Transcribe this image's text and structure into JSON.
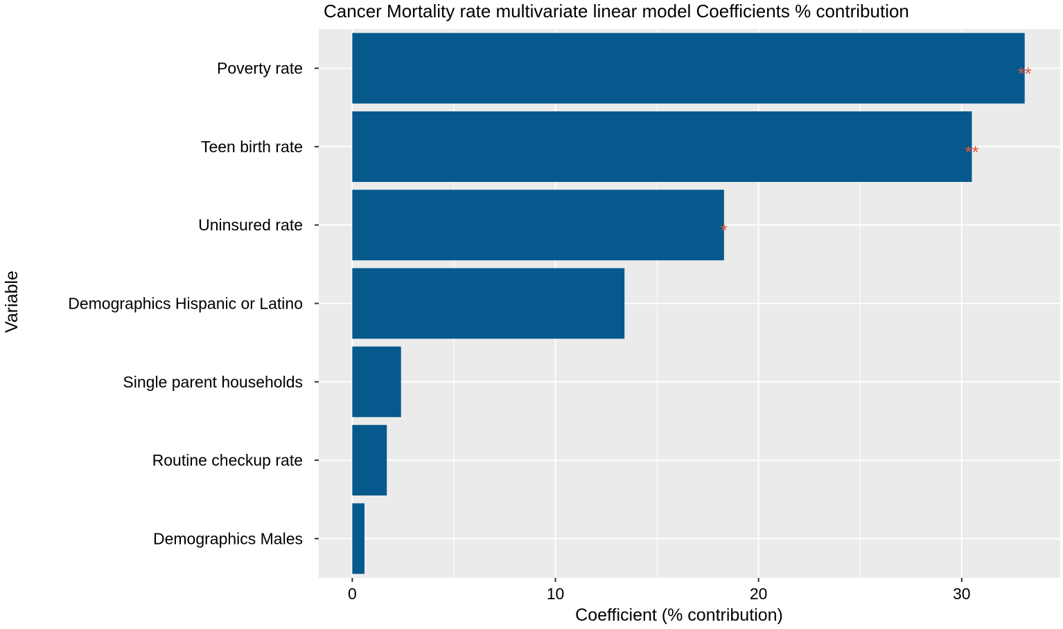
{
  "chart_data": {
    "type": "bar",
    "orientation": "horizontal",
    "title": "Cancer Mortality rate multivariate linear model Coefficients % contribution",
    "xlabel": "Coefficient (% contribution)",
    "ylabel": "Variable",
    "xlim": [
      -1.65,
      34.85
    ],
    "x_ticks": [
      0,
      10,
      20,
      30
    ],
    "x_tick_labels": [
      "0",
      "10",
      "20",
      "30"
    ],
    "x_minor_gridlines": [
      5,
      15,
      25
    ],
    "grid": true,
    "categories": [
      "Poverty rate",
      "Teen birth rate",
      "Uninsured rate",
      "Demographics Hispanic or Latino",
      "Single parent households",
      "Routine checkup rate",
      "Demographics Males"
    ],
    "values": [
      33.1,
      30.5,
      18.3,
      13.4,
      2.4,
      1.7,
      0.6
    ],
    "significance": [
      "**",
      "**",
      "*",
      "",
      "",
      "",
      ""
    ],
    "colors": {
      "bar": "#06598c",
      "panel": "#ebebeb",
      "grid": "#ffffff",
      "significance": "#e8553e",
      "tick": "#333333"
    }
  }
}
